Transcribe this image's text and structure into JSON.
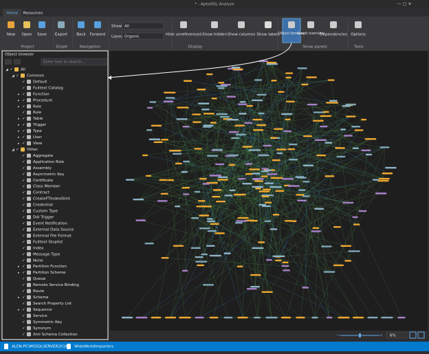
{
  "window": {
    "title": "* - ApexSQL Analyze"
  },
  "tabs": [
    "Home",
    "Resources"
  ],
  "ribbon": {
    "groups": [
      {
        "label": "Project",
        "buttons": [
          "New",
          "Open",
          "Save"
        ]
      },
      {
        "label": "Graph",
        "buttons": [
          "Export"
        ]
      },
      {
        "label": "Navigation",
        "buttons": [
          "Back",
          "Forward"
        ]
      },
      {
        "label": "Display",
        "buttons": [
          "Hide unreferenced",
          "Show hidden",
          "Show columns",
          "Show labels"
        ]
      },
      {
        "label": "Show panels",
        "buttons": [
          "Object browser",
          "Graph overview",
          "Dependencies"
        ]
      },
      {
        "label": "Tools",
        "buttons": [
          "Options"
        ]
      }
    ],
    "show_label": "Show",
    "show_value": "All",
    "layout_label": "Layout",
    "layout_value": "Organic"
  },
  "object_browser": {
    "title": "Object browser",
    "search_placeholder": "Enter text to search...",
    "root": "All",
    "folders": [
      {
        "label": "Common",
        "items": [
          {
            "label": "Default",
            "expandable": false
          },
          {
            "label": "Fulltext Catalog",
            "expandable": false
          },
          {
            "label": "Function",
            "expandable": true
          },
          {
            "label": "Procedure",
            "expandable": true
          },
          {
            "label": "Role",
            "expandable": true
          },
          {
            "label": "Rule",
            "expandable": false
          },
          {
            "label": "Table",
            "expandable": true
          },
          {
            "label": "Trigger",
            "expandable": true
          },
          {
            "label": "Type",
            "expandable": true
          },
          {
            "label": "User",
            "expandable": true
          },
          {
            "label": "View",
            "expandable": true
          }
        ]
      },
      {
        "label": "Other",
        "items": [
          {
            "label": "Aggregate",
            "expandable": false
          },
          {
            "label": "Application Role",
            "expandable": false
          },
          {
            "label": "Assembly",
            "expandable": false
          },
          {
            "label": "Asymmetric Key",
            "expandable": false
          },
          {
            "label": "Certificate",
            "expandable": false
          },
          {
            "label": "Class Member",
            "expandable": false
          },
          {
            "label": "Contract",
            "expandable": false
          },
          {
            "label": "CreateFTIndexStmt",
            "expandable": false
          },
          {
            "label": "Credential",
            "expandable": false
          },
          {
            "label": "Custom Type",
            "expandable": false
          },
          {
            "label": "Ddl Trigger",
            "expandable": false
          },
          {
            "label": "Event Notification",
            "expandable": false
          },
          {
            "label": "External Data Source",
            "expandable": false
          },
          {
            "label": "External File Format",
            "expandable": false
          },
          {
            "label": "Fulltext Stoplist",
            "expandable": false
          },
          {
            "label": "Index",
            "expandable": false
          },
          {
            "label": "Message Type",
            "expandable": false
          },
          {
            "label": "None",
            "expandable": false
          },
          {
            "label": "Partition Function",
            "expandable": true
          },
          {
            "label": "Partition Scheme",
            "expandable": true
          },
          {
            "label": "Queue",
            "expandable": false
          },
          {
            "label": "Remote Service Binding",
            "expandable": false
          },
          {
            "label": "Route",
            "expandable": false
          },
          {
            "label": "Schema",
            "expandable": true
          },
          {
            "label": "Search Property List",
            "expandable": false
          },
          {
            "label": "Sequence",
            "expandable": true
          },
          {
            "label": "Service",
            "expandable": false
          },
          {
            "label": "Symmetric Key",
            "expandable": false
          },
          {
            "label": "Synonym",
            "expandable": false
          },
          {
            "label": "Xml Schema Collection",
            "expandable": false
          }
        ]
      }
    ]
  },
  "zoom": "6%",
  "status": {
    "server": "ALEN-PC\\MSSQLSERVER2016",
    "database": "WideWorldImporters"
  }
}
